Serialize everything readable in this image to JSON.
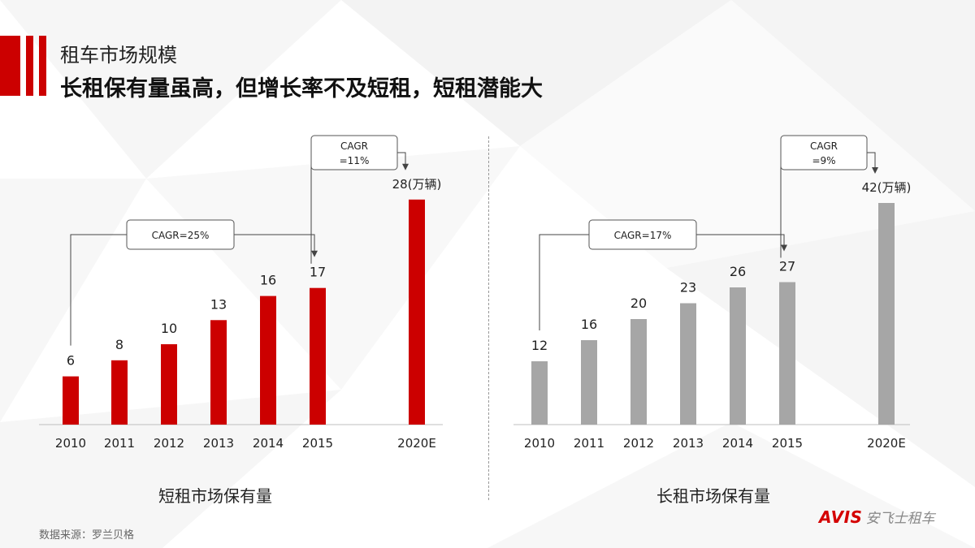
{
  "header": {
    "subtitle": "租车市场规模",
    "title": "长租保有量虽高，但增长率不及短租，短租潜能大"
  },
  "colors": {
    "accent": "#cc0000",
    "gray_bar": "#a6a6a6"
  },
  "chart_data": [
    {
      "type": "bar",
      "title": "短租市场保有量",
      "unit_label": "(万辆)",
      "categories": [
        "2010",
        "2011",
        "2012",
        "2013",
        "2014",
        "2015",
        "2020E"
      ],
      "values": [
        6,
        8,
        10,
        13,
        16,
        17,
        28
      ],
      "bar_color": "#cc0000",
      "annotations": [
        {
          "text": "CAGR=25%",
          "from": "2010",
          "to": "2015"
        },
        {
          "text": "CAGR\n=11%",
          "from": "2015",
          "to": "2020E"
        }
      ]
    },
    {
      "type": "bar",
      "title": "长租市场保有量",
      "unit_label": "(万辆)",
      "categories": [
        "2010",
        "2011",
        "2012",
        "2013",
        "2014",
        "2015",
        "2020E"
      ],
      "values": [
        12,
        16,
        20,
        23,
        26,
        27,
        42
      ],
      "bar_color": "#a6a6a6",
      "annotations": [
        {
          "text": "CAGR=17%",
          "from": "2010",
          "to": "2015"
        },
        {
          "text": "CAGR\n=9%",
          "from": "2015",
          "to": "2020E"
        }
      ]
    }
  ],
  "footer": {
    "source": "数据来源：罗兰贝格",
    "logo_mark": "AVIS",
    "logo_text": "安飞士租车"
  }
}
